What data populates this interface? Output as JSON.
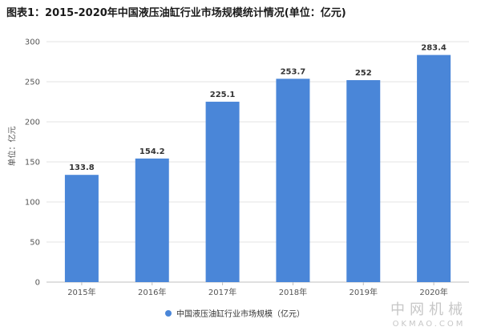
{
  "title": "图表1：2015-2020年中国液压油缸行业市场规模统计情况(单位：亿元)",
  "chart_data": {
    "type": "bar",
    "title": "图表1：2015-2020年中国液压油缸行业市场规模统计情况(单位：亿元)",
    "xlabel": "",
    "ylabel": "单位：亿元",
    "categories": [
      "2015年",
      "2016年",
      "2017年",
      "2018年",
      "2019年",
      "2020年"
    ],
    "series": [
      {
        "name": "中国液压油缸行业市场规模（亿元）",
        "values": [
          133.8,
          154.2,
          225.1,
          253.7,
          252,
          283.4
        ],
        "labels": [
          "133.8",
          "154.2",
          "225.1",
          "253.7",
          "252",
          "283.4"
        ]
      }
    ],
    "ylim": [
      0,
      300
    ],
    "yticks": [
      0,
      50,
      100,
      150,
      200,
      250,
      300
    ],
    "grid": true,
    "legend_position": "bottom",
    "color": "#4a86d8"
  },
  "legend_label": "中国液压油缸行业市场规模（亿元）",
  "watermark": {
    "cn": "中网机械",
    "en": "OKMAO.COM"
  }
}
